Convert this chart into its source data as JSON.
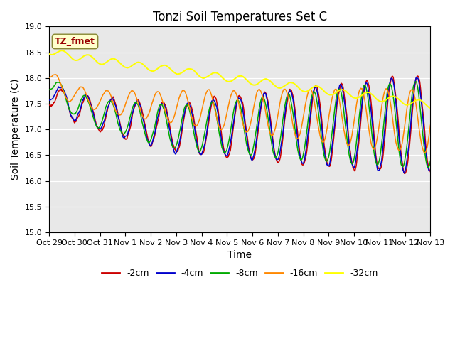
{
  "title": "Tonzi Soil Temperatures Set C",
  "xlabel": "Time",
  "ylabel": "Soil Temperature (C)",
  "ylim": [
    15.0,
    19.0
  ],
  "xlim": [
    0,
    360
  ],
  "yticks": [
    15.0,
    15.5,
    16.0,
    16.5,
    17.0,
    17.5,
    18.0,
    18.5,
    19.0
  ],
  "xtick_labels": [
    "Oct 29",
    "Oct 30",
    "Oct 31",
    "Nov 1",
    "Nov 2",
    "Nov 3",
    "Nov 4",
    "Nov 5",
    "Nov 6",
    "Nov 7",
    "Nov 8",
    "Nov 9",
    "Nov 10",
    "Nov 11",
    "Nov 12",
    "Nov 13"
  ],
  "colors": {
    "m2cm": "#cc0000",
    "m4cm": "#0000cc",
    "m8cm": "#00aa00",
    "m16cm": "#ff8800",
    "m32cm": "#ffff00"
  },
  "legend_labels": [
    "-2cm",
    "-4cm",
    "-8cm",
    "-16cm",
    "-32cm"
  ],
  "annotation_label": "TZ_fmet",
  "annotation_fc": "#ffffcc",
  "annotation_tc": "#990000",
  "annotation_ec": "#888833",
  "bg_color": "#e8e8e8",
  "title_fontsize": 12,
  "axis_fontsize": 10,
  "tick_fontsize": 8,
  "legend_fontsize": 9
}
